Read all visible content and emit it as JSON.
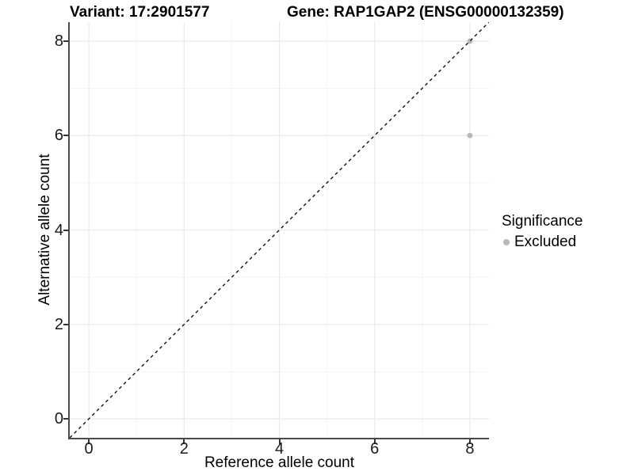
{
  "titles": {
    "variant": "Variant: 17:2901577",
    "gene": "Gene: RAP1GAP2 (ENSG00000132359)"
  },
  "chart_data": {
    "type": "scatter",
    "title_left": "Variant: 17:2901577",
    "title_right": "Gene: RAP1GAP2 (ENSG00000132359)",
    "xlabel": "Reference allele count",
    "ylabel": "Alternative allele count",
    "xlim": [
      -0.4,
      8.4
    ],
    "ylim": [
      -0.4,
      8.4
    ],
    "x_ticks": [
      0,
      2,
      4,
      6,
      8
    ],
    "y_ticks": [
      0,
      2,
      4,
      6,
      8
    ],
    "minor_ticks": [
      1,
      3,
      5,
      7
    ],
    "grid": "major and minor, light gray on white",
    "reference_line": {
      "kind": "identity",
      "slope": 1,
      "intercept": 0,
      "style": "dashed",
      "color": "#111111"
    },
    "series": [
      {
        "name": "Excluded",
        "color": "#b9b9b9",
        "points": [
          {
            "x": 8,
            "y": 6
          },
          {
            "x": 8,
            "y": 8
          }
        ]
      }
    ],
    "legend": {
      "title": "Significance",
      "position": "right",
      "entries": [
        {
          "label": "Excluded",
          "color": "#b9b9b9"
        }
      ]
    },
    "colors": {
      "grid_major": "#e9e9e9",
      "grid_minor": "#f4f4f4",
      "axis_line": "#4a4a4a",
      "tick_mark": "#333333",
      "point": "#b9b9b9",
      "dashed_line": "#111111",
      "background": "#ffffff"
    }
  }
}
